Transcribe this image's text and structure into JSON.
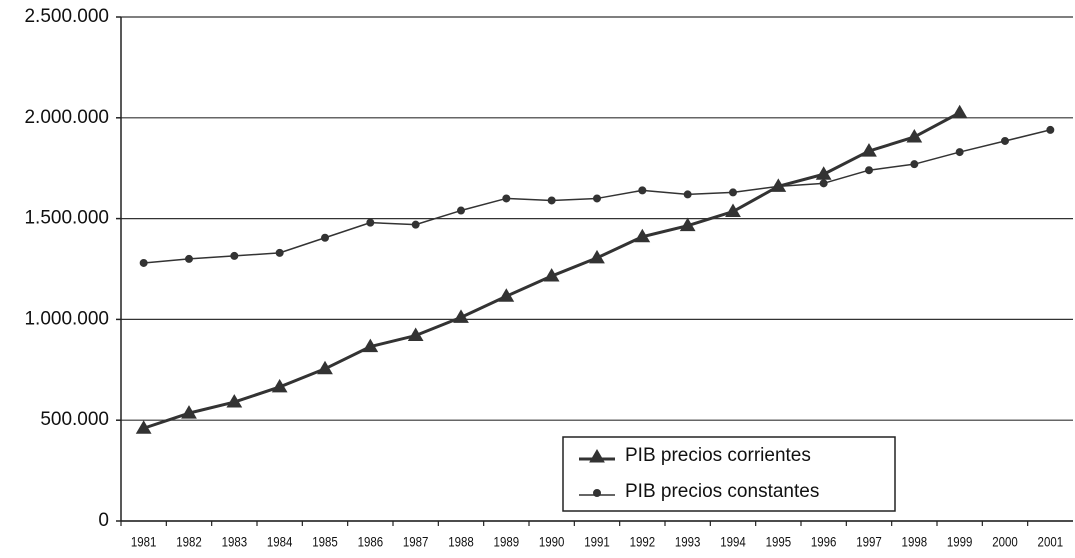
{
  "chart_data": {
    "type": "line",
    "categories": [
      "1981",
      "1982",
      "1983",
      "1984",
      "1985",
      "1986",
      "1987",
      "1988",
      "1989",
      "1990",
      "1991",
      "1992",
      "1993",
      "1994",
      "1995",
      "1996",
      "1997",
      "1998",
      "1999",
      "2000",
      "2001"
    ],
    "series": [
      {
        "name": "PIB precios corrientes",
        "color": "#333333",
        "marker": "triangle",
        "values": [
          460000,
          535000,
          590000,
          665000,
          755000,
          865000,
          920000,
          1010000,
          1115000,
          1215000,
          1305000,
          1410000,
          1465000,
          1535000,
          1660000,
          1720000,
          1835000,
          1905000,
          2025000,
          null,
          null
        ]
      },
      {
        "name": "PIB precios constantes",
        "color": "#333333",
        "marker": "circle",
        "values": [
          1280000,
          1300000,
          1315000,
          1330000,
          1405000,
          1480000,
          1470000,
          1540000,
          1600000,
          1590000,
          1600000,
          1640000,
          1620000,
          1630000,
          1660000,
          1675000,
          1740000,
          1770000,
          1830000,
          1885000,
          1940000
        ]
      }
    ],
    "ylim": [
      0,
      2500000
    ],
    "yticks": [
      0,
      {
        "value": 500000,
        "label": "500.000"
      },
      {
        "value": 1000000,
        "label": "1.000.000"
      },
      {
        "value": 1500000,
        "label": "1.500.000"
      },
      {
        "value": 2000000,
        "label": "2.000.000"
      },
      {
        "value": 2500000,
        "label": "2.500.000"
      }
    ],
    "grid": true,
    "legend": "lower right"
  }
}
